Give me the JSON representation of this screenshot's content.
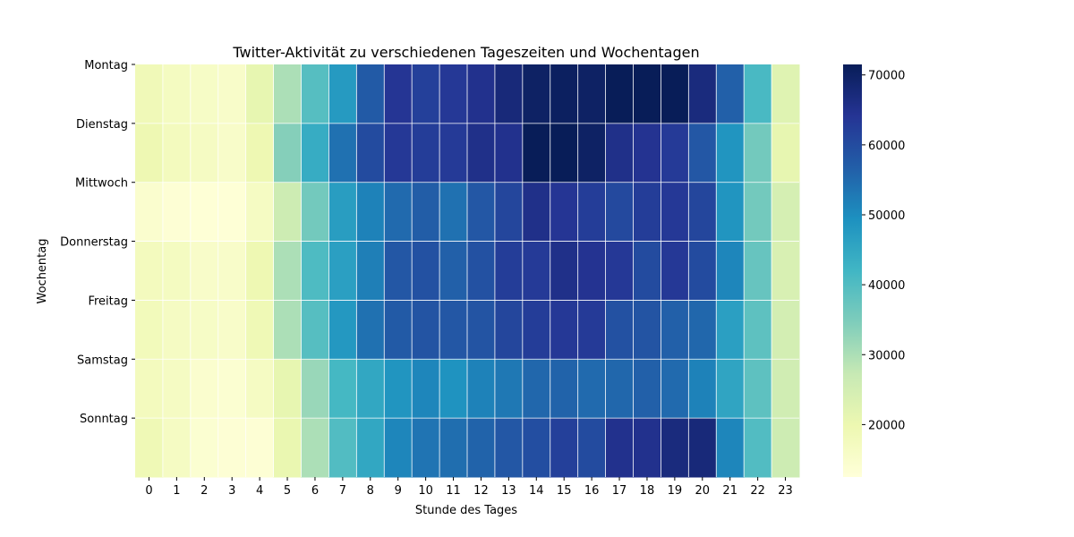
{
  "chart_data": {
    "type": "heatmap",
    "title": "Twitter-Aktivität zu verschiedenen Tageszeiten und Wochentagen",
    "xlabel": "Stunde des Tages",
    "ylabel": "Wochentag",
    "x_categories": [
      "0",
      "1",
      "2",
      "3",
      "4",
      "5",
      "6",
      "7",
      "8",
      "9",
      "10",
      "11",
      "12",
      "13",
      "14",
      "15",
      "16",
      "17",
      "18",
      "19",
      "20",
      "21",
      "22",
      "23"
    ],
    "y_categories": [
      "Montag",
      "Dienstag",
      "Mittwoch",
      "Donnerstag",
      "Freitag",
      "Samstag",
      "Sonntag"
    ],
    "values": [
      [
        18500,
        17000,
        16000,
        15500,
        21000,
        30000,
        39500,
        47500,
        57500,
        64000,
        62000,
        63500,
        65000,
        67500,
        70000,
        70500,
        70000,
        71500,
        71500,
        71500,
        67000,
        56500,
        41000,
        22500
      ],
      [
        19500,
        17500,
        16500,
        15500,
        19500,
        34000,
        44000,
        54000,
        60000,
        63500,
        62500,
        63000,
        65500,
        65000,
        72000,
        71500,
        70000,
        65500,
        64500,
        63000,
        58000,
        48500,
        36000,
        21000
      ],
      [
        14500,
        13500,
        13000,
        13000,
        16500,
        26000,
        36000,
        47000,
        51500,
        55000,
        57000,
        54000,
        58000,
        61000,
        65500,
        64000,
        62500,
        60500,
        62500,
        63500,
        61000,
        48500,
        36000,
        24500
      ],
      [
        17500,
        17000,
        15500,
        15500,
        19500,
        30000,
        40500,
        46500,
        52000,
        58000,
        59000,
        56500,
        59000,
        62500,
        63000,
        65500,
        64500,
        63500,
        60000,
        63500,
        60000,
        51000,
        37500,
        24000
      ],
      [
        18000,
        16500,
        16000,
        15500,
        19000,
        30000,
        39500,
        48000,
        54000,
        57500,
        58500,
        58000,
        58500,
        61000,
        62500,
        63500,
        63000,
        59000,
        58500,
        56500,
        55500,
        46500,
        38500,
        25000
      ],
      [
        17500,
        16500,
        14500,
        14000,
        16500,
        21000,
        32000,
        41500,
        45000,
        48500,
        51000,
        49000,
        51500,
        53000,
        55500,
        56000,
        55000,
        55500,
        56500,
        55000,
        51500,
        45500,
        38500,
        25500
      ],
      [
        19000,
        16500,
        14000,
        13500,
        13500,
        20500,
        30000,
        40000,
        45000,
        51000,
        53500,
        54500,
        56000,
        58000,
        59500,
        62000,
        60000,
        65000,
        65000,
        67000,
        67500,
        51000,
        40000,
        26000
      ]
    ],
    "vmin": 12500,
    "vmax": 71500,
    "colorbar_ticks": [
      20000,
      30000,
      40000,
      50000,
      60000,
      70000
    ],
    "colormap": "YlGnBu",
    "colormap_stops": [
      "#ffffd9",
      "#edf8b1",
      "#c7e9b4",
      "#7fcdbb",
      "#41b6c4",
      "#1d91c0",
      "#225ea8",
      "#253494",
      "#081d58"
    ],
    "grid_line_color": "#ffffff"
  }
}
